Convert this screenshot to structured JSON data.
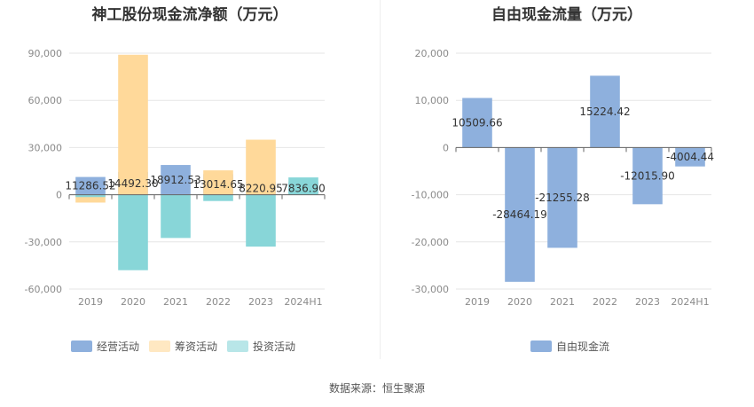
{
  "footer": {
    "source": "数据来源：恒生聚源"
  },
  "chart_data": [
    {
      "type": "bar",
      "title": "神工股份现金流净额（万元）",
      "categories": [
        "2019",
        "2020",
        "2021",
        "2022",
        "2023",
        "2024H1"
      ],
      "ylim": [
        -60000,
        90000
      ],
      "yticks": [
        "90,000",
        "60,000",
        "30,000",
        "0",
        "-30,000",
        "-60,000"
      ],
      "grid": true,
      "legend_position": "bottom",
      "series": [
        {
          "name": "经营活动",
          "color": "#8eb0dd",
          "values": [
            11286.52,
            14492.3,
            18912.53,
            13014.65,
            8220.95,
            7836.9
          ],
          "labels": [
            "11286.52",
            "14492.30",
            "18912.53",
            "13014.65",
            "8220.95",
            "7836.90"
          ]
        },
        {
          "name": "筹资活动",
          "color": "#ffd99a",
          "values": [
            -5000,
            89000,
            -2000,
            15500,
            35000,
            1000
          ]
        },
        {
          "name": "投资活动",
          "color": "#88d6d8",
          "values": [
            -1500,
            -48000,
            -27500,
            -4000,
            -33000,
            11000
          ]
        }
      ]
    },
    {
      "type": "bar",
      "title": "自由现金流量（万元）",
      "categories": [
        "2019",
        "2020",
        "2021",
        "2022",
        "2023",
        "2024H1"
      ],
      "ylim": [
        -30000,
        20000
      ],
      "yticks": [
        "20,000",
        "10,000",
        "0",
        "-10,000",
        "-20,000",
        "-30,000"
      ],
      "grid": true,
      "legend_position": "bottom",
      "series": [
        {
          "name": "自由现金流",
          "color": "#8eb0dd",
          "values": [
            10509.66,
            -28464.19,
            -21255.28,
            15224.42,
            -12015.9,
            -4004.44
          ],
          "labels": [
            "10509.66",
            "-28464.19",
            "-21255.28",
            "15224.42",
            "-12015.90",
            "-4004.44"
          ]
        }
      ]
    }
  ]
}
